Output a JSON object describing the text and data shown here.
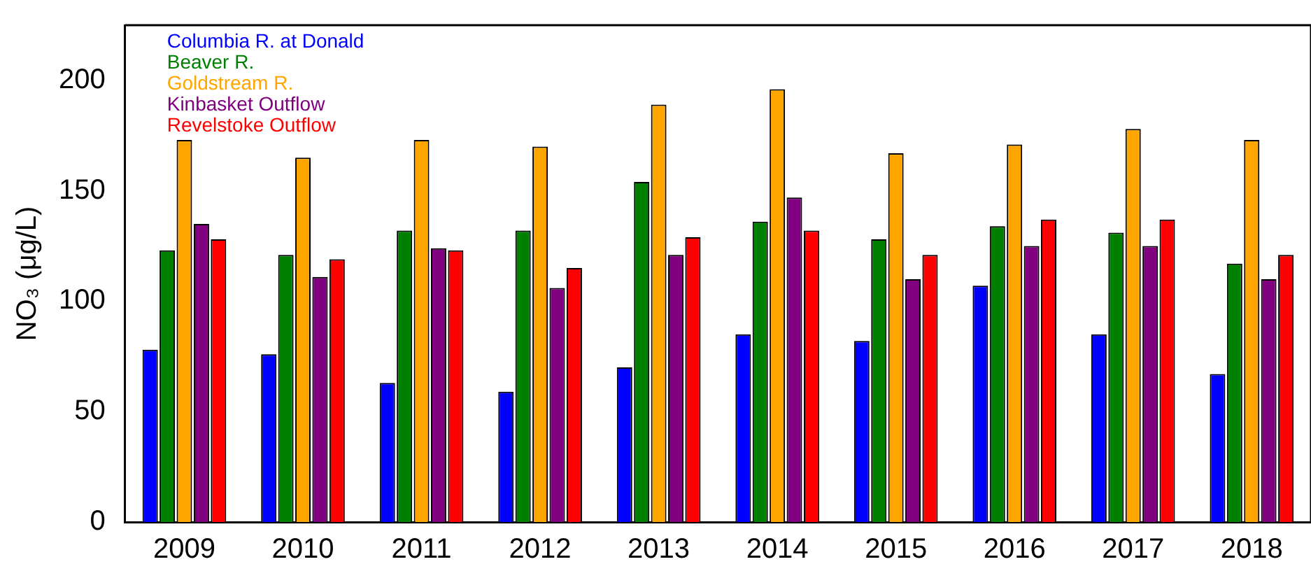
{
  "chart_data": {
    "type": "bar",
    "ylabel": "NO₃ (μg/L)",
    "categories": [
      "2009",
      "2010",
      "2011",
      "2012",
      "2013",
      "2014",
      "2015",
      "2016",
      "2017",
      "2018"
    ],
    "series": [
      {
        "name": "Columbia R. at Donald",
        "color": "#0000ff",
        "values": [
          78,
          76,
          63,
          59,
          70,
          85,
          82,
          107,
          85,
          67
        ]
      },
      {
        "name": "Beaver R.",
        "color": "#008000",
        "values": [
          123,
          121,
          132,
          132,
          154,
          136,
          128,
          134,
          131,
          117
        ]
      },
      {
        "name": "Goldstream R.",
        "color": "#ffa500",
        "values": [
          173,
          165,
          173,
          170,
          189,
          196,
          167,
          171,
          178,
          173
        ]
      },
      {
        "name": "Kinbasket Outflow",
        "color": "#800080",
        "values": [
          135,
          111,
          124,
          106,
          121,
          147,
          110,
          125,
          125,
          110
        ]
      },
      {
        "name": "Revelstoke Outflow",
        "color": "#ff0000",
        "values": [
          128,
          119,
          123,
          115,
          129,
          132,
          121,
          137,
          137,
          121
        ]
      }
    ],
    "ylim": [
      0,
      225
    ],
    "yticks": [
      0,
      50,
      100,
      150,
      200
    ],
    "grid": false,
    "legend": "top left"
  }
}
